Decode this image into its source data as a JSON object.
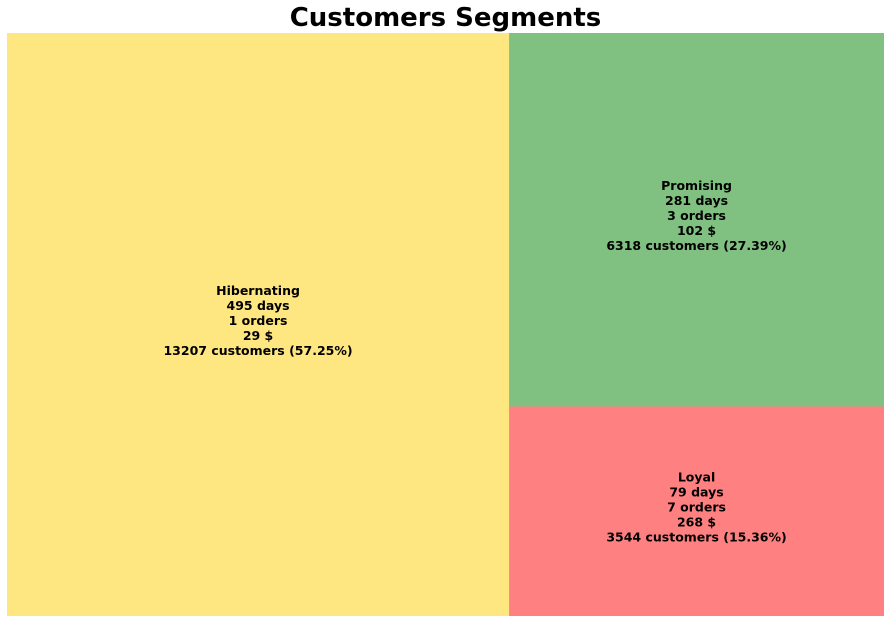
{
  "chart_data": {
    "type": "treemap",
    "title": "Customers Segments",
    "segments": [
      {
        "name": "Hibernating",
        "days": "495 days",
        "orders": "1 orders",
        "amount": "29 $",
        "customers": "13207 customers (57.25%)",
        "value": 13207,
        "percent": 57.25,
        "color": "#fee680"
      },
      {
        "name": "Promising",
        "days": "281 days",
        "orders": "3 orders",
        "amount": "102 $",
        "customers": "6318 customers (27.39%)",
        "value": 6318,
        "percent": 27.39,
        "color": "#80c080"
      },
      {
        "name": "Loyal",
        "days": "79 days",
        "orders": "7 orders",
        "amount": "268 $",
        "customers": "3544 customers (15.36%)",
        "value": 3544,
        "percent": 15.36,
        "color": "#ff8080"
      }
    ]
  }
}
